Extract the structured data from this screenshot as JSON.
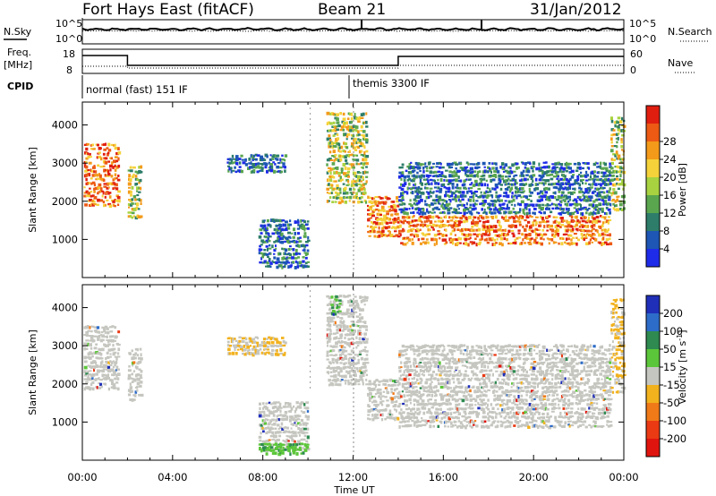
{
  "header": {
    "station": "Fort Hays East (fitACF)",
    "beam": "Beam 21",
    "date": "31/Jan/2012"
  },
  "status": {
    "nsky_label": "N.Sky",
    "nsearch_label": "N.Search",
    "noise_ticks_left": [
      "10^5",
      "10^0"
    ],
    "noise_ticks_right": [
      "10^5",
      "10^0"
    ],
    "freq_label": "Freq.",
    "freq_unit": "[MHz]",
    "freq_ticks": [
      "18",
      "8"
    ],
    "nave_label": "Nave",
    "nave_ticks": [
      "60",
      "0"
    ],
    "cpid_label": "CPID",
    "cpid_segments": [
      {
        "start_hour": 0,
        "label": "normal (fast) 151 IF"
      },
      {
        "start_hour": 12.02,
        "label": "themis 3300 IF"
      }
    ]
  },
  "chart_data": [
    {
      "type": "heatmap",
      "name": "power",
      "xlabel": "",
      "ylabel": "Slant Range [km]",
      "xlim_hours": [
        0,
        24
      ],
      "ylim_km": [
        0,
        4600
      ],
      "y_ticks": [
        1000,
        2000,
        3000,
        4000
      ],
      "colorbar": {
        "label": "Power [dB]",
        "ticks": [
          "4",
          "8",
          "12",
          "16",
          "20",
          "24",
          "28"
        ],
        "colors": [
          "#1e2be8",
          "#1d56b4",
          "#2d7d6a",
          "#5aa64f",
          "#a8d240",
          "#f5d23a",
          "#f39a1a",
          "#ec5a14",
          "#e01e10"
        ]
      },
      "echo_regions": [
        {
          "t": [
            0.05,
            1.6
          ],
          "r": [
            1900,
            3600
          ],
          "level": "high"
        },
        {
          "t": [
            2.0,
            2.6
          ],
          "r": [
            1600,
            3000
          ],
          "level": "mid"
        },
        {
          "t": [
            6.4,
            9.0
          ],
          "r": [
            2800,
            3300
          ],
          "level": "low"
        },
        {
          "t": [
            7.8,
            10.0
          ],
          "r": [
            300,
            1600
          ],
          "level": "low"
        },
        {
          "t": [
            10.8,
            12.6
          ],
          "r": [
            2000,
            4400
          ],
          "level": "mid"
        },
        {
          "t": [
            12.6,
            14.0
          ],
          "r": [
            1100,
            2200
          ],
          "level": "high"
        },
        {
          "t": [
            14.0,
            23.4
          ],
          "r": [
            900,
            1700
          ],
          "level": "high"
        },
        {
          "t": [
            14.0,
            23.4
          ],
          "r": [
            1700,
            3100
          ],
          "level": "low"
        },
        {
          "t": [
            23.4,
            24.0
          ],
          "r": [
            1800,
            4300
          ],
          "level": "mid"
        }
      ]
    },
    {
      "type": "heatmap",
      "name": "velocity",
      "xlabel": "Time UT",
      "ylabel": "Slant Range [km]",
      "xlim_hours": [
        0,
        24
      ],
      "ylim_km": [
        0,
        4600
      ],
      "x_ticks": [
        "00:00",
        "04:00",
        "08:00",
        "12:00",
        "16:00",
        "20:00",
        "00:00"
      ],
      "y_ticks": [
        1000,
        2000,
        3000,
        4000
      ],
      "colorbar": {
        "label": "Velocity [m s",
        "label_sup": "-1",
        "label_end": "]",
        "ticks": [
          "200",
          "100",
          "50",
          "15",
          "-15",
          "-50",
          "-100",
          "-200"
        ],
        "colors": [
          "#1f2fb8",
          "#2d6cc8",
          "#2e8a50",
          "#5cc63a",
          "#c6c6c0",
          "#f2b21e",
          "#f07a18",
          "#ea3a14",
          "#e0140e"
        ]
      },
      "echo_regions": [
        {
          "t": [
            0.05,
            1.6
          ],
          "r": [
            1900,
            3600
          ],
          "level": "ground"
        },
        {
          "t": [
            2.0,
            2.6
          ],
          "r": [
            1600,
            3000
          ],
          "level": "ground"
        },
        {
          "t": [
            6.4,
            9.0
          ],
          "r": [
            2800,
            3300
          ],
          "level": "negative"
        },
        {
          "t": [
            7.8,
            10.0
          ],
          "r": [
            300,
            1600
          ],
          "level": "ground"
        },
        {
          "t": [
            7.8,
            10.0
          ],
          "r": [
            200,
            500
          ],
          "level": "positive"
        },
        {
          "t": [
            10.8,
            12.6
          ],
          "r": [
            2000,
            4400
          ],
          "level": "ground"
        },
        {
          "t": [
            11.0,
            11.4
          ],
          "r": [
            3900,
            4400
          ],
          "level": "positive"
        },
        {
          "t": [
            12.6,
            14.0
          ],
          "r": [
            1100,
            2200
          ],
          "level": "ground"
        },
        {
          "t": [
            14.0,
            23.4
          ],
          "r": [
            900,
            1700
          ],
          "level": "ground"
        },
        {
          "t": [
            14.0,
            23.4
          ],
          "r": [
            1700,
            3100
          ],
          "level": "ground"
        },
        {
          "t": [
            23.4,
            24.0
          ],
          "r": [
            1800,
            4300
          ],
          "level": "negative"
        }
      ]
    }
  ]
}
